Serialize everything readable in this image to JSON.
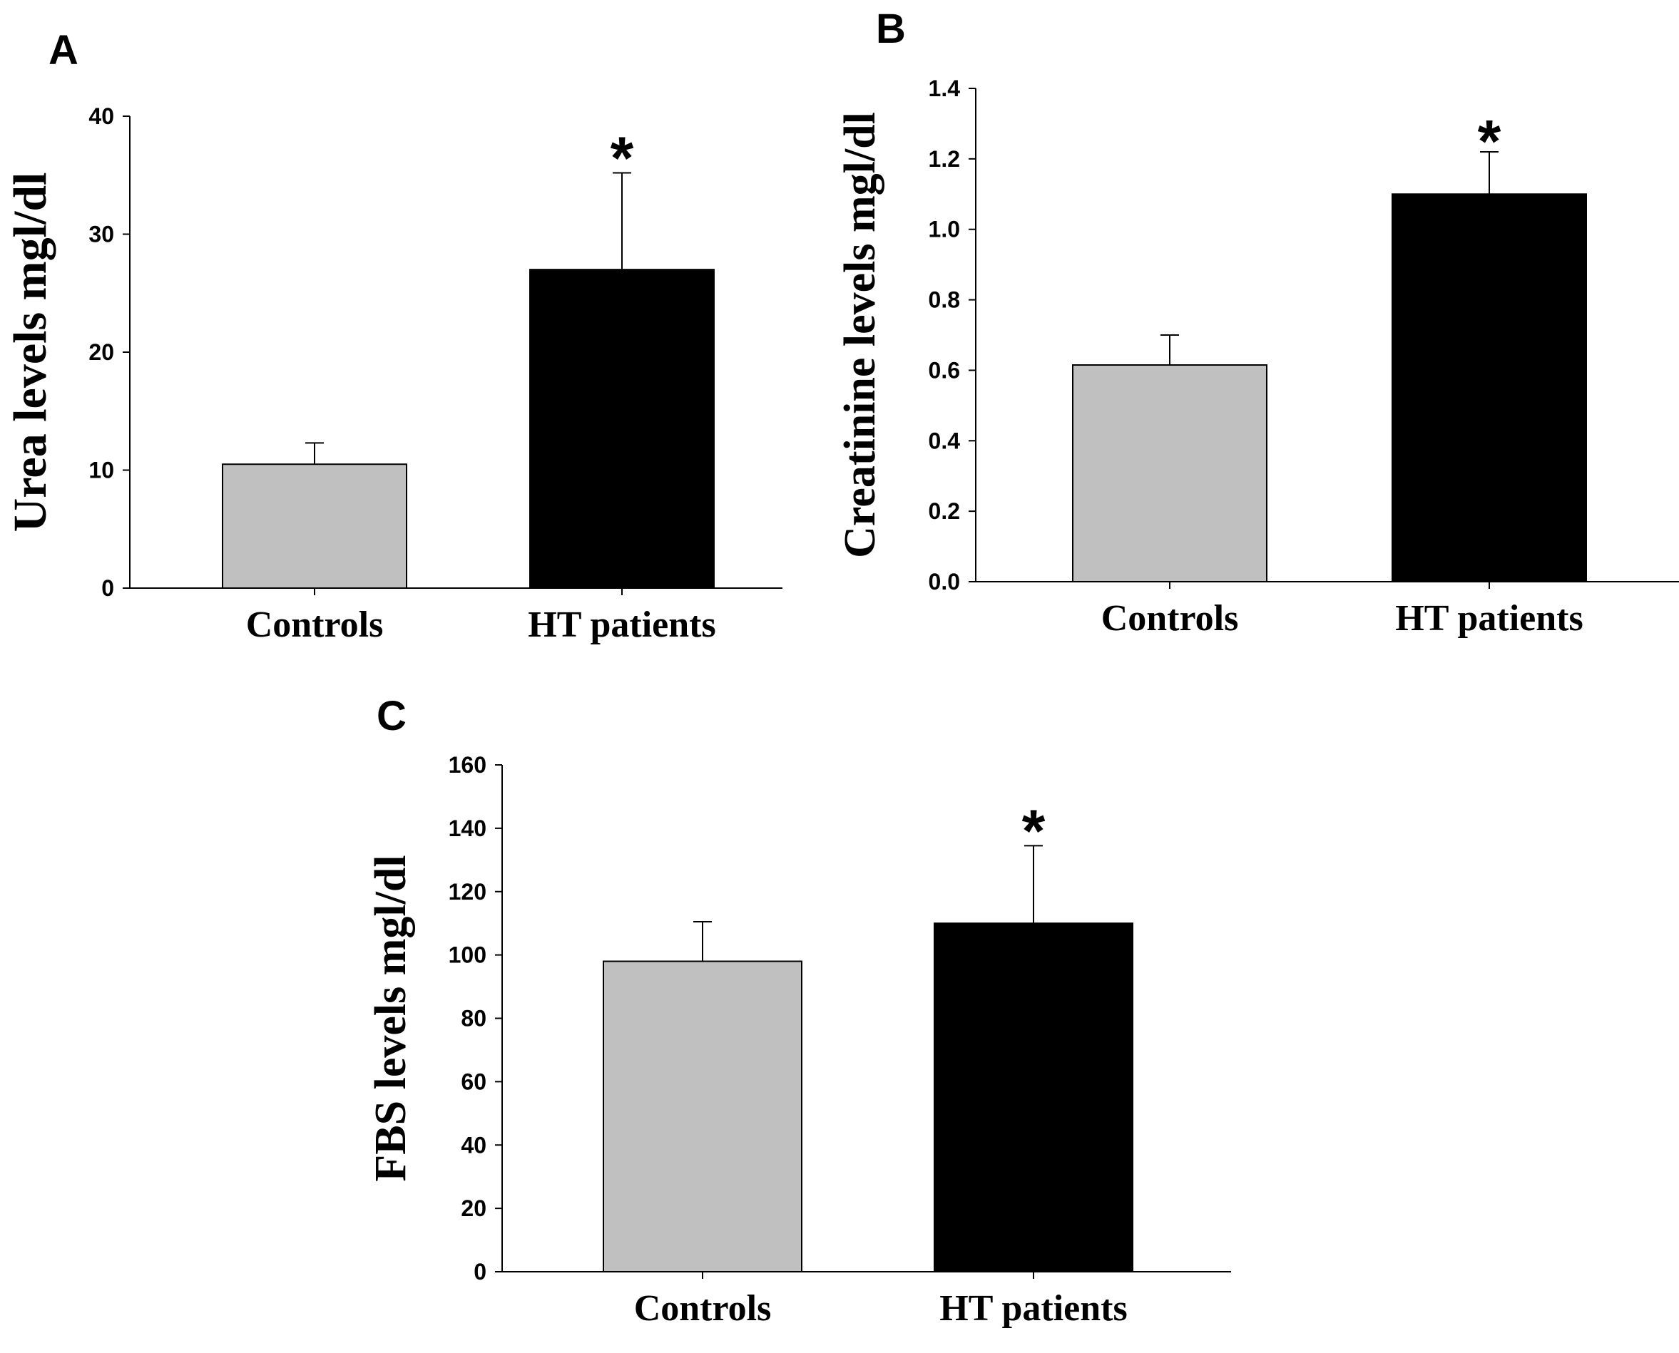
{
  "chart_data": [
    {
      "type": "bar",
      "panel": "A",
      "categories": [
        "Controls",
        "HT patients"
      ],
      "values": [
        10.5,
        27
      ],
      "errors": [
        1.8,
        8.2
      ],
      "significance": [
        "",
        "*"
      ],
      "colors": [
        "#c0c0c0",
        "#000000"
      ],
      "yticks": [
        "0",
        "10",
        "20",
        "30",
        "40"
      ],
      "ylim": [
        0,
        40
      ],
      "ylabel": "Urea levels mgl/dl",
      "xlabel": ""
    },
    {
      "type": "bar",
      "panel": "B",
      "categories": [
        "Controls",
        "HT patients"
      ],
      "values": [
        0.615,
        1.1
      ],
      "errors": [
        0.085,
        0.12
      ],
      "significance": [
        "",
        "*"
      ],
      "colors": [
        "#c0c0c0",
        "#000000"
      ],
      "yticks": [
        "0.0",
        "0.2",
        "0.4",
        "0.6",
        "0.8",
        "1.0",
        "1.2",
        "1.4"
      ],
      "ylim": [
        0,
        1.4
      ],
      "ylabel": "Creatinine levels mgl/dl",
      "xlabel": ""
    },
    {
      "type": "bar",
      "panel": "C",
      "categories": [
        "Controls",
        "HT patients"
      ],
      "values": [
        98,
        110
      ],
      "errors": [
        12.5,
        24.5
      ],
      "significance": [
        "",
        "*"
      ],
      "colors": [
        "#c0c0c0",
        "#000000"
      ],
      "yticks": [
        "0",
        "20",
        "40",
        "60",
        "80",
        "100",
        "120",
        "140",
        "160"
      ],
      "ylim": [
        0,
        160
      ],
      "ylabel": "FBS levels mgl/dl",
      "xlabel": ""
    }
  ]
}
